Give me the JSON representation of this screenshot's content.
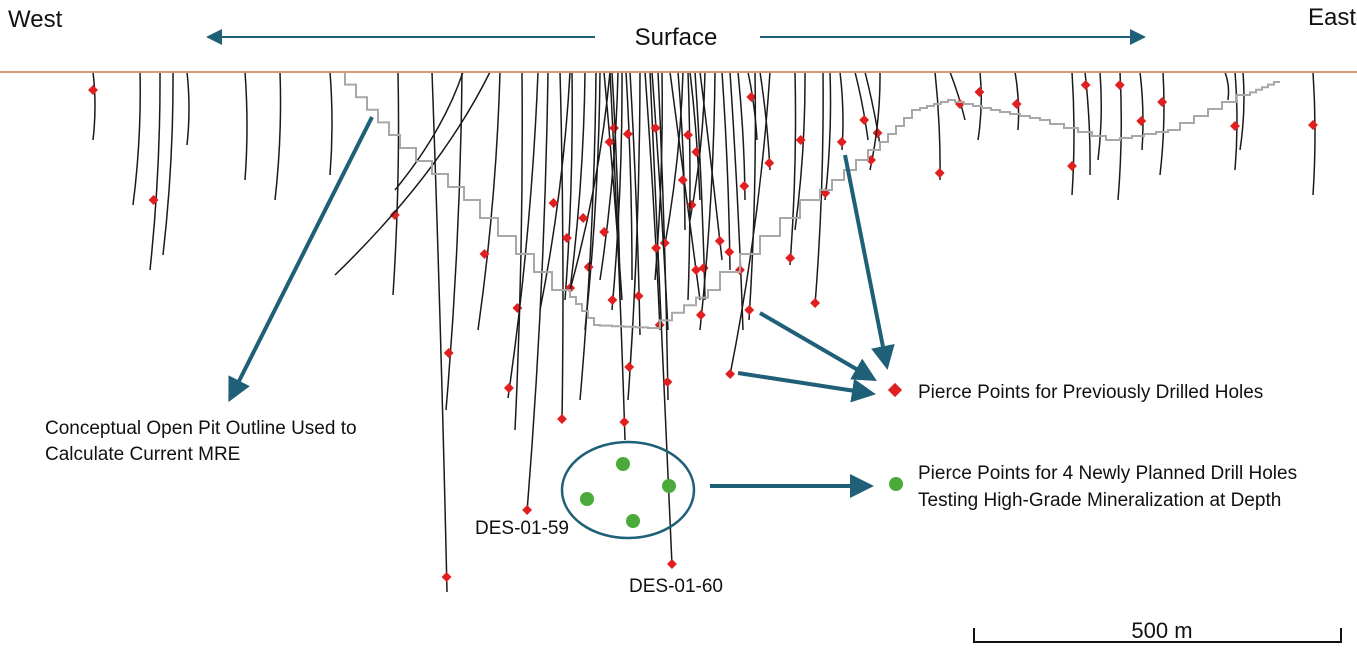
{
  "labels": {
    "west": "West",
    "east": "East",
    "surface": "Surface"
  },
  "callouts": {
    "pit_outline": [
      "Conceptual Open Pit Outline Used to",
      "Calculate Current MRE"
    ],
    "previous_holes": "Pierce Points for Previously Drilled Holes",
    "planned_holes": [
      "Pierce Points for 4 Newly Planned Drill Holes",
      "Testing High-Grade Mineralization at Depth"
    ]
  },
  "hole_labels": [
    "DES-01-59",
    "DES-01-60"
  ],
  "scale_bar": {
    "label": "500 m"
  }
}
